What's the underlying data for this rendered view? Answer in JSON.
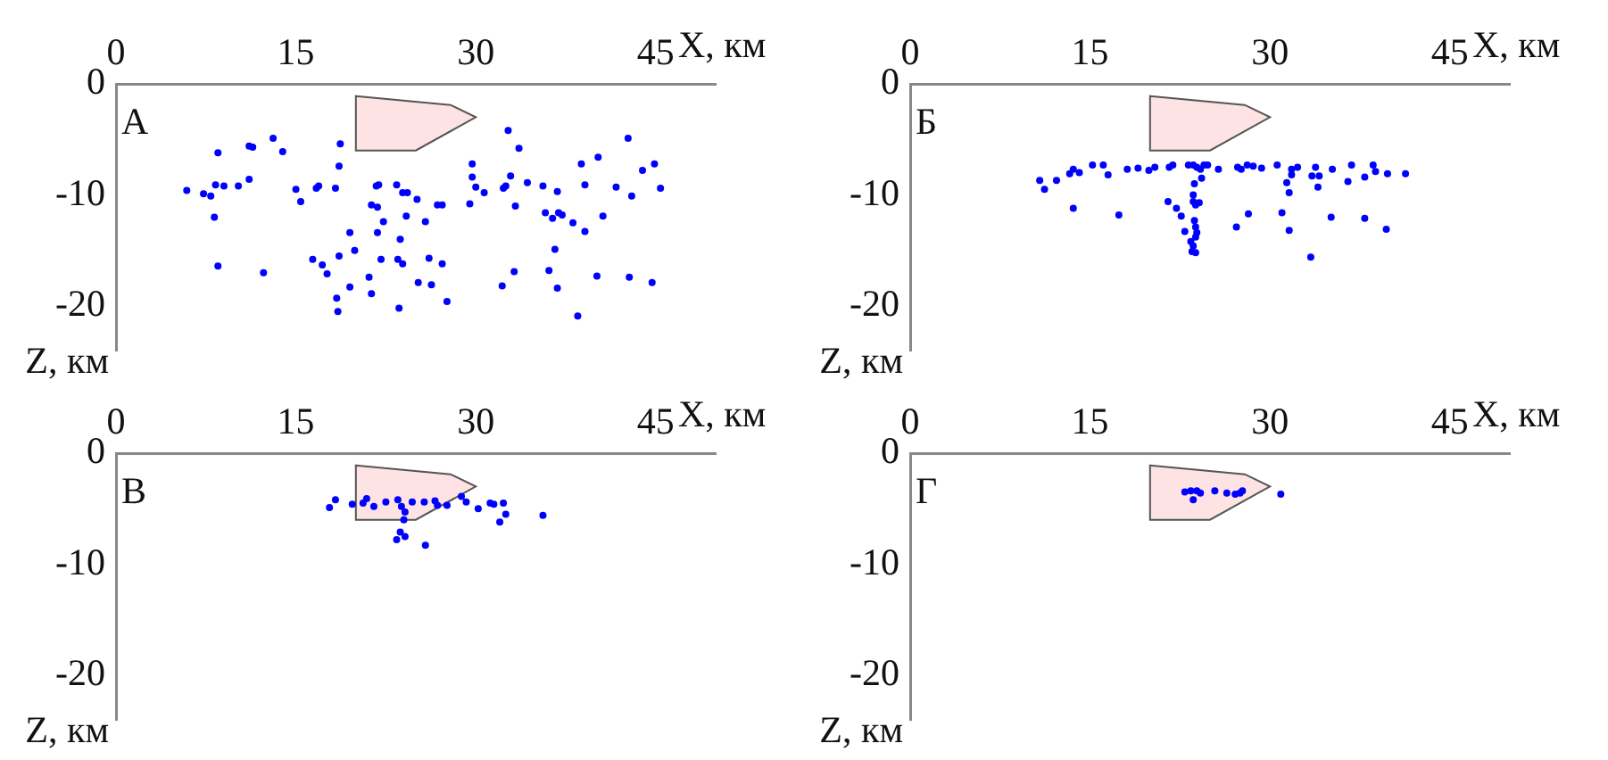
{
  "chart_data": [
    {
      "type": "scatter",
      "title": "А",
      "xlabel": "X, км",
      "ylabel": "Z, км",
      "color": "#0000ff",
      "marker": "circle",
      "xlim": [
        0,
        50
      ],
      "ylim": [
        -24,
        0
      ],
      "xticks": [
        0,
        15,
        30,
        45
      ],
      "yticks": [
        0,
        -10,
        -20
      ],
      "x": [
        5.9,
        7.3,
        7.9,
        8.3,
        8.5,
        8.2,
        8.5,
        9.0,
        10.2,
        11.1,
        11.1,
        11.4,
        12.3,
        13.1,
        13.9,
        15.0,
        15.4,
        16.7,
        16.9,
        16.4,
        17.2,
        17.6,
        18.3,
        18.6,
        18.7,
        18.6,
        18.4,
        18.5,
        19.5,
        19.9,
        19.5,
        21.3,
        21.7,
        21.9,
        21.8,
        21.8,
        22.3,
        22.1,
        21.1,
        21.3,
        23.4,
        23.9,
        24.3,
        24.2,
        23.7,
        23.5,
        23.9,
        23.6,
        25.1,
        25.8,
        25.2,
        26.1,
        26.3,
        26.8,
        27.2,
        27.2,
        27.6,
        29.5,
        29.7,
        29.7,
        30.0,
        30.7,
        32.3,
        32.5,
        32.9,
        32.7,
        33.6,
        33.3,
        33.2,
        32.2,
        34.3,
        35.6,
        35.8,
        36.4,
        36.8,
        36.9,
        37.2,
        36.6,
        36.1,
        36.8,
        38.1,
        38.8,
        39.1,
        39.1,
        40.2,
        40.6,
        40.1,
        38.5,
        41.7,
        42.7,
        43.0,
        42.8,
        43.9,
        44.9,
        45.4,
        44.7
      ],
      "values": [
        -9.6,
        -9.9,
        -10.1,
        -9.1,
        -6.2,
        -12.0,
        -16.4,
        -9.2,
        -9.2,
        -8.6,
        -5.6,
        -5.7,
        -17.0,
        -4.9,
        -6.1,
        -9.5,
        -10.6,
        -9.4,
        -9.2,
        -15.8,
        -16.3,
        -17.1,
        -9.4,
        -7.4,
        -5.4,
        -15.5,
        -19.3,
        -20.5,
        -13.4,
        -15.0,
        -18.3,
        -10.9,
        -9.2,
        -9.1,
        -11.1,
        -13.4,
        -12.4,
        -15.8,
        -17.4,
        -18.9,
        -9.1,
        -9.8,
        -9.8,
        -11.9,
        -14.0,
        -15.8,
        -16.2,
        -20.2,
        -10.4,
        -12.4,
        -17.9,
        -15.7,
        -18.1,
        -10.9,
        -10.9,
        -16.2,
        -19.6,
        -10.8,
        -7.2,
        -8.4,
        -9.3,
        -9.8,
        -9.4,
        -9.2,
        -8.3,
        -4.2,
        -5.8,
        -11.0,
        -16.9,
        -18.2,
        -8.9,
        -9.2,
        -11.6,
        -12.1,
        -9.7,
        -11.6,
        -11.8,
        -14.9,
        -16.8,
        -18.4,
        -12.5,
        -7.2,
        -9.1,
        -13.3,
        -6.6,
        -11.9,
        -17.3,
        -20.9,
        -9.3,
        -4.9,
        -10.1,
        -17.4,
        -7.8,
        -7.2,
        -9.4,
        -17.9
      ]
    },
    {
      "type": "scatter",
      "title": "Б",
      "xlabel": "X, км",
      "ylabel": "Z, км",
      "color": "#0000ff",
      "marker": "circle",
      "xlim": [
        0,
        50
      ],
      "ylim": [
        -24,
        0
      ],
      "xticks": [
        0,
        15,
        30,
        45
      ],
      "yticks": [
        0,
        -10,
        -20
      ],
      "x": [
        10.8,
        11.2,
        12.2,
        13.3,
        13.6,
        14.1,
        13.6,
        15.2,
        16.1,
        16.5,
        17.4,
        18.1,
        19.0,
        19.9,
        20.4,
        21.6,
        21.9,
        21.5,
        22.2,
        22.6,
        22.9,
        23.2,
        23.6,
        23.9,
        24.2,
        24.5,
        24.8,
        25.7,
        24.3,
        23.7,
        23.6,
        23.6,
        23.8,
        24.1,
        23.7,
        23.8,
        23.9,
        23.8,
        23.4,
        23.6,
        23.5,
        23.8,
        27.3,
        27.6,
        28.1,
        28.6,
        29.3,
        30.6,
        27.2,
        28.2,
        31.0,
        31.4,
        31.6,
        31.8,
        31.8,
        32.3,
        31.6,
        33.5,
        33.8,
        34.1,
        34.0,
        33.4,
        35.2,
        35.1,
        36.5,
        36.8,
        37.9,
        37.9,
        38.6,
        38.8,
        39.8,
        39.7,
        41.3
      ],
      "values": [
        -8.7,
        -9.5,
        -8.7,
        -8.1,
        -7.7,
        -8.0,
        -11.2,
        -7.3,
        -7.3,
        -8.2,
        -11.8,
        -7.7,
        -7.6,
        -7.8,
        -7.5,
        -7.5,
        -7.3,
        -10.6,
        -11.2,
        -11.9,
        -13.3,
        -7.3,
        -7.3,
        -7.5,
        -7.7,
        -7.3,
        -7.3,
        -7.7,
        -8.5,
        -9.0,
        -10.0,
        -10.6,
        -10.9,
        -10.7,
        -12.3,
        -12.9,
        -13.4,
        -13.8,
        -14.2,
        -14.6,
        -15.1,
        -15.2,
        -7.5,
        -7.7,
        -7.3,
        -7.4,
        -7.6,
        -7.3,
        -12.9,
        -11.7,
        -11.6,
        -8.9,
        -9.8,
        -7.7,
        -8.2,
        -7.5,
        -13.2,
        -8.3,
        -7.5,
        -8.3,
        -9.3,
        -15.6,
        -7.7,
        -12.0,
        -8.8,
        -7.3,
        -8.4,
        -12.1,
        -7.3,
        -7.9,
        -8.1,
        -13.1,
        -8.1
      ]
    },
    {
      "type": "scatter",
      "title": "В",
      "xlabel": "X, км",
      "ylabel": "Z, км",
      "color": "#0000ff",
      "marker": "circle",
      "xlim": [
        0,
        50
      ],
      "ylim": [
        -24,
        0
      ],
      "xticks": [
        0,
        15,
        30,
        45
      ],
      "yticks": [
        0,
        -10,
        -20
      ],
      "x": [
        17.8,
        18.3,
        19.7,
        20.6,
        20.9,
        21.5,
        22.5,
        23.5,
        23.8,
        24.7,
        24.1,
        24.0,
        23.7,
        24.1,
        23.4,
        25.7,
        26.6,
        26.8,
        27.6,
        25.8,
        28.8,
        29.2,
        30.2,
        31.2,
        31.5,
        32.3,
        32.5,
        32.0,
        35.6
      ],
      "values": [
        -4.9,
        -4.2,
        -4.6,
        -4.5,
        -4.1,
        -4.8,
        -4.4,
        -4.2,
        -4.8,
        -4.4,
        -5.3,
        -6.0,
        -7.1,
        -7.5,
        -7.8,
        -4.4,
        -4.3,
        -4.7,
        -4.7,
        -8.3,
        -3.9,
        -4.4,
        -5.0,
        -4.5,
        -4.6,
        -4.5,
        -5.5,
        -6.2,
        -5.6
      ]
    },
    {
      "type": "scatter",
      "title": "Г",
      "xlabel": "X, км",
      "ylabel": "Z, км",
      "color": "#0000ff",
      "marker": "circle",
      "xlim": [
        0,
        50
      ],
      "ylim": [
        -24,
        0
      ],
      "xticks": [
        0,
        15,
        30,
        45
      ],
      "yticks": [
        0,
        -10,
        -20
      ],
      "x": [
        22.9,
        23.4,
        23.6,
        23.9,
        24.2,
        25.4,
        26.4,
        27.1,
        27.5,
        27.7,
        30.9
      ],
      "values": [
        -3.5,
        -3.4,
        -4.2,
        -3.4,
        -3.6,
        -3.4,
        -3.6,
        -3.7,
        -3.6,
        -3.4,
        -3.7
      ]
    }
  ]
}
